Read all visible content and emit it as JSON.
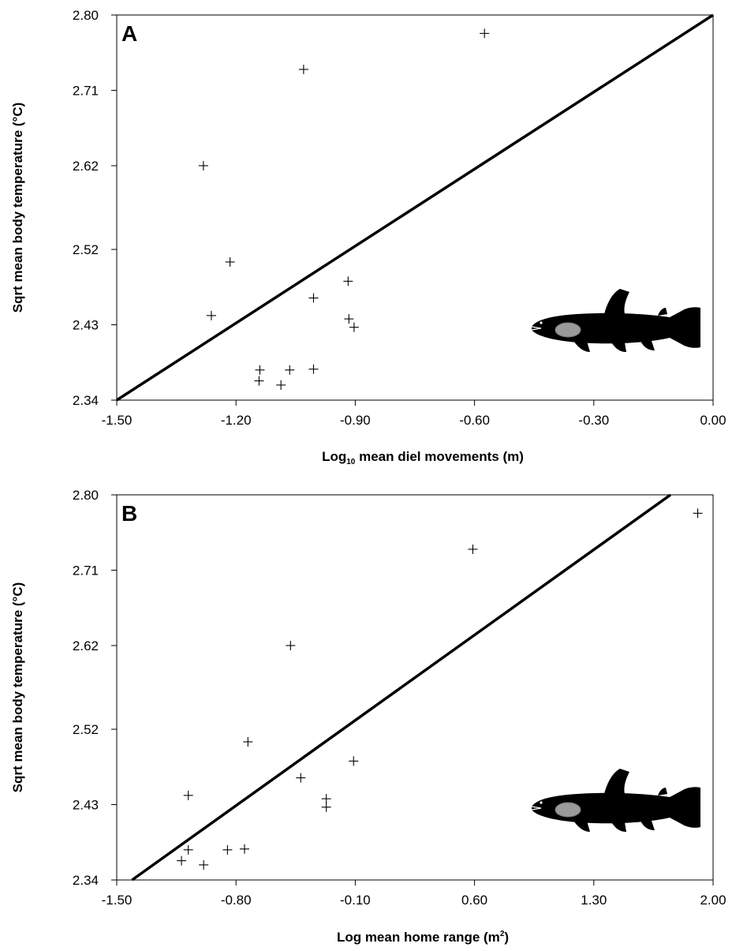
{
  "chart_data": [
    {
      "type": "scatter",
      "panel_label": "A",
      "xlabel_main": "Log",
      "xlabel_sub": "10",
      "xlabel_rest": " mean diel movements (m)",
      "ylabel": "Sqrt mean body temperature  (°C)",
      "xlim": [
        -1.5,
        0.0
      ],
      "ylim": [
        2.34,
        2.8
      ],
      "xticks": [
        -1.5,
        -1.2,
        -0.9,
        -0.6,
        -0.3,
        0.0
      ],
      "xtick_labels": [
        "-1.50",
        "-1.20",
        "-0.90",
        "-0.60",
        "-0.30",
        "0.00"
      ],
      "yticks": [
        2.34,
        2.43,
        2.52,
        2.62,
        2.71,
        2.8
      ],
      "ytick_labels": [
        "2.34",
        "2.43",
        "2.52",
        "2.62",
        "2.71",
        "2.80"
      ],
      "grid": false,
      "points": [
        {
          "x": -1.282,
          "y": 2.62
        },
        {
          "x": -1.03,
          "y": 2.735
        },
        {
          "x": -0.575,
          "y": 2.778
        },
        {
          "x": -1.215,
          "y": 2.505
        },
        {
          "x": -1.262,
          "y": 2.441
        },
        {
          "x": -1.005,
          "y": 2.462
        },
        {
          "x": -0.918,
          "y": 2.482
        },
        {
          "x": -0.916,
          "y": 2.437
        },
        {
          "x": -0.903,
          "y": 2.427
        },
        {
          "x": -1.14,
          "y": 2.376
        },
        {
          "x": -1.142,
          "y": 2.363
        },
        {
          "x": -1.065,
          "y": 2.376
        },
        {
          "x": -1.005,
          "y": 2.377
        },
        {
          "x": -1.087,
          "y": 2.358
        }
      ],
      "fit_line": {
        "x": [
          -1.5,
          0.0
        ],
        "y": [
          2.34,
          2.8
        ]
      }
    },
    {
      "type": "scatter",
      "panel_label": "B",
      "xlabel_main": "Log mean home range (m",
      "xlabel_sup": "2",
      "xlabel_rest": ")",
      "ylabel": "Sqrt mean body temperature  (°C)",
      "xlim": [
        -1.5,
        2.0
      ],
      "ylim": [
        2.34,
        2.8
      ],
      "xticks": [
        -1.5,
        -0.8,
        -0.1,
        0.6,
        1.3,
        2.0
      ],
      "xtick_labels": [
        "-1.50",
        "-0.80",
        "-0.10",
        "0.60",
        "1.30",
        "2.00"
      ],
      "yticks": [
        2.34,
        2.43,
        2.52,
        2.62,
        2.71,
        2.8
      ],
      "ytick_labels": [
        "2.34",
        "2.43",
        "2.52",
        "2.62",
        "2.71",
        "2.80"
      ],
      "grid": false,
      "points": [
        {
          "x": 1.91,
          "y": 2.778
        },
        {
          "x": 0.59,
          "y": 2.735
        },
        {
          "x": -0.48,
          "y": 2.62
        },
        {
          "x": -0.73,
          "y": 2.505
        },
        {
          "x": -1.08,
          "y": 2.441
        },
        {
          "x": -0.42,
          "y": 2.462
        },
        {
          "x": -0.11,
          "y": 2.482
        },
        {
          "x": -0.27,
          "y": 2.437
        },
        {
          "x": -0.27,
          "y": 2.427
        },
        {
          "x": -1.08,
          "y": 2.376
        },
        {
          "x": -1.12,
          "y": 2.363
        },
        {
          "x": -0.85,
          "y": 2.376
        },
        {
          "x": -0.75,
          "y": 2.377
        },
        {
          "x": -0.99,
          "y": 2.358
        }
      ],
      "fit_line": {
        "x": [
          -1.41,
          1.75
        ],
        "y": [
          2.34,
          2.8
        ]
      }
    }
  ]
}
